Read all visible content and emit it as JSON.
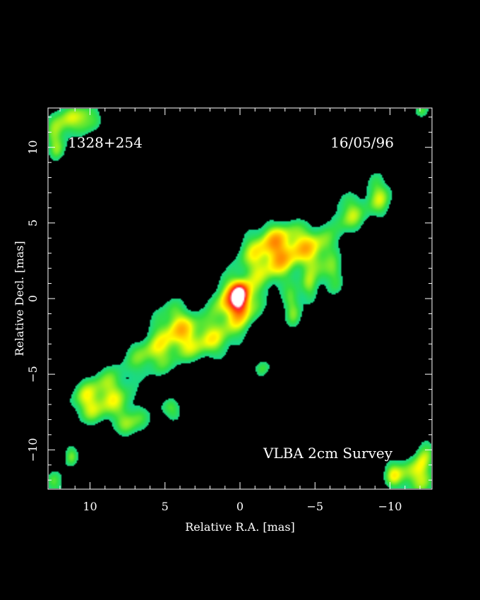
{
  "chart_data": {
    "type": "heatmap",
    "source_name": "1328+254",
    "date": "16/05/96",
    "survey_label": "VLBA 2cm Survey",
    "xlabel": "Relative R.A. [mas]",
    "ylabel": "Relative Decl. [mas]",
    "xlim": [
      12.8,
      -12.8
    ],
    "ylim": [
      -12.6,
      12.6
    ],
    "x_major_ticks": [
      10,
      5,
      0,
      -5,
      -10
    ],
    "y_major_ticks": [
      10,
      5,
      0,
      -5,
      -10
    ],
    "x_tick_labels": [
      "10",
      "5",
      "0",
      "−5",
      "−10"
    ],
    "y_tick_labels": [
      "10",
      "5",
      "0",
      "−5",
      "−10"
    ],
    "minor_tick_step": 1,
    "colormap": [
      "#000000",
      "#00d2d2",
      "#33e040",
      "#ffff00",
      "#ffa000",
      "#ff5000",
      "#ff2040",
      "#ffffff"
    ],
    "background_color": "#000000",
    "features": [
      {
        "x": 0,
        "y": 0.1,
        "peak": 1.0,
        "sx": 0.35,
        "sy": 0.55
      },
      {
        "x": 0.3,
        "y": -0.3,
        "peak": 0.55,
        "sx": 1.0,
        "sy": 1.1
      },
      {
        "x": -1.8,
        "y": 2.6,
        "peak": 0.35,
        "sx": 1.4,
        "sy": 1.4
      },
      {
        "x": -3.0,
        "y": 3.6,
        "peak": 0.3,
        "sx": 1.2,
        "sy": 1.0
      },
      {
        "x": -5.2,
        "y": 3.2,
        "peak": 0.3,
        "sx": 1.0,
        "sy": 1.2
      },
      {
        "x": -7.3,
        "y": 5.6,
        "peak": 0.28,
        "sx": 0.8,
        "sy": 1.0
      },
      {
        "x": -9.3,
        "y": 6.8,
        "peak": 0.28,
        "sx": 0.7,
        "sy": 1.1
      },
      {
        "x": 2.4,
        "y": -2.7,
        "peak": 0.32,
        "sx": 1.6,
        "sy": 1.0
      },
      {
        "x": 4.4,
        "y": -1.7,
        "peak": 0.28,
        "sx": 1.0,
        "sy": 1.2
      },
      {
        "x": 6.0,
        "y": -3.8,
        "peak": 0.27,
        "sx": 1.2,
        "sy": 1.0
      },
      {
        "x": 8.6,
        "y": -6.2,
        "peak": 0.28,
        "sx": 1.1,
        "sy": 1.2
      },
      {
        "x": 10.2,
        "y": -6.9,
        "peak": 0.27,
        "sx": 0.9,
        "sy": 1.0
      },
      {
        "x": 7.2,
        "y": -8.2,
        "peak": 0.24,
        "sx": 0.9,
        "sy": 0.8
      },
      {
        "x": 4.6,
        "y": -7.4,
        "peak": 0.22,
        "sx": 0.6,
        "sy": 0.6
      },
      {
        "x": -3.5,
        "y": -0.7,
        "peak": 0.24,
        "sx": 0.5,
        "sy": 1.0
      },
      {
        "x": -4.6,
        "y": 0.6,
        "peak": 0.22,
        "sx": 0.4,
        "sy": 0.8
      },
      {
        "x": -6.2,
        "y": 1.2,
        "peak": 0.22,
        "sx": 0.5,
        "sy": 0.8
      },
      {
        "x": -1.5,
        "y": -4.6,
        "peak": 0.22,
        "sx": 0.4,
        "sy": 0.5
      },
      {
        "x": 11.5,
        "y": 11.8,
        "peak": 0.3,
        "sx": 1.0,
        "sy": 0.8
      },
      {
        "x": 12.3,
        "y": 10.2,
        "peak": 0.25,
        "sx": 0.5,
        "sy": 0.8
      },
      {
        "x": 10.0,
        "y": 12.0,
        "peak": 0.24,
        "sx": 0.5,
        "sy": 0.6
      },
      {
        "x": -11.8,
        "y": -11.8,
        "peak": 0.3,
        "sx": 1.0,
        "sy": 0.9
      },
      {
        "x": -12.4,
        "y": -10.3,
        "peak": 0.25,
        "sx": 0.4,
        "sy": 1.0
      },
      {
        "x": -10.3,
        "y": -11.6,
        "peak": 0.24,
        "sx": 0.5,
        "sy": 0.7
      },
      {
        "x": 11.3,
        "y": -10.4,
        "peak": 0.22,
        "sx": 0.4,
        "sy": 0.6
      },
      {
        "x": 12.3,
        "y": -12.2,
        "peak": 0.24,
        "sx": 0.5,
        "sy": 0.6
      },
      {
        "x": -12.2,
        "y": 12.5,
        "peak": 0.2,
        "sx": 0.4,
        "sy": 0.4
      }
    ]
  }
}
